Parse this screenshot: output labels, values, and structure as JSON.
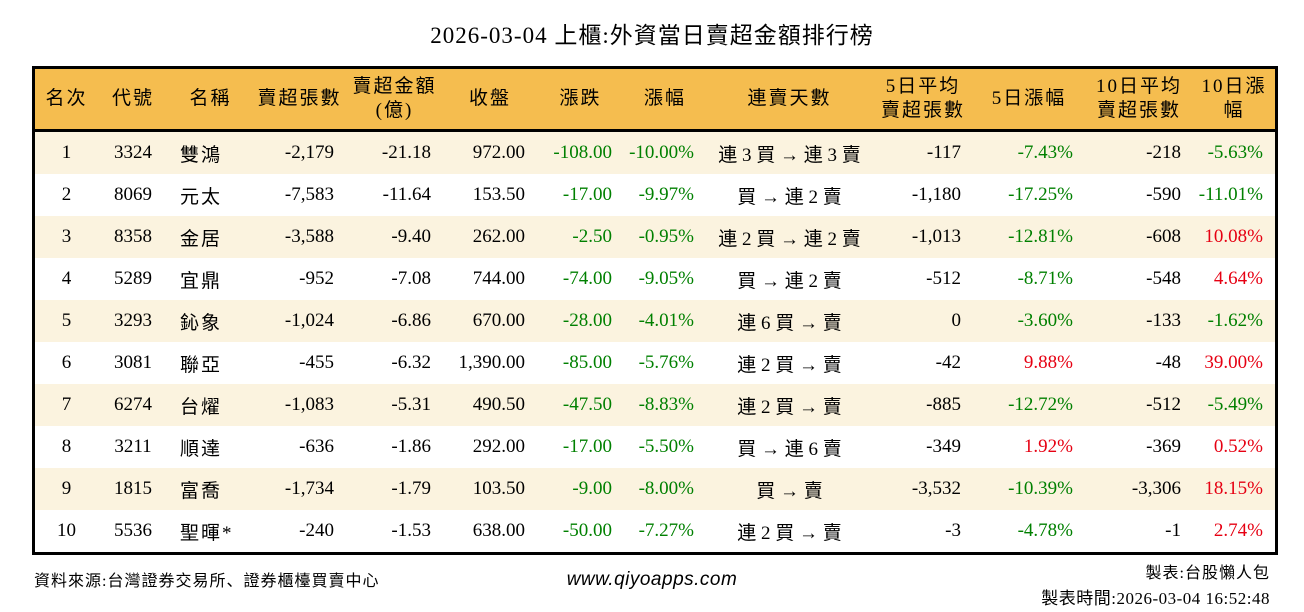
{
  "chart_data": {
    "type": "table",
    "title": "2026-03-04 上櫃:外資當日賣超金額排行榜",
    "columns": [
      "名次",
      "代號",
      "名稱",
      "賣超張數",
      "賣超金額\n(億)",
      "收盤",
      "漲跌",
      "漲幅",
      "連賣天數",
      "5日平均\n賣超張數",
      "5日漲幅",
      "10日平均\n賣超張數",
      "10日漲幅"
    ],
    "rows": [
      {
        "cells": [
          "1",
          "3324",
          "雙鴻",
          "-2,179",
          "-21.18",
          "972.00",
          "-108.00",
          "-10.00%",
          "連 3 買 → 連 3 賣",
          "-117",
          "-7.43%",
          "-218",
          "-5.63%"
        ],
        "colors": [
          "k",
          "k",
          "k",
          "k",
          "k",
          "k",
          "g",
          "g",
          "k",
          "k",
          "g",
          "k",
          "g"
        ]
      },
      {
        "cells": [
          "2",
          "8069",
          "元太",
          "-7,583",
          "-11.64",
          "153.50",
          "-17.00",
          "-9.97%",
          "買 → 連 2 賣",
          "-1,180",
          "-17.25%",
          "-590",
          "-11.01%"
        ],
        "colors": [
          "k",
          "k",
          "k",
          "k",
          "k",
          "k",
          "g",
          "g",
          "k",
          "k",
          "g",
          "k",
          "g"
        ]
      },
      {
        "cells": [
          "3",
          "8358",
          "金居",
          "-3,588",
          "-9.40",
          "262.00",
          "-2.50",
          "-0.95%",
          "連 2 買 → 連 2 賣",
          "-1,013",
          "-12.81%",
          "-608",
          "10.08%"
        ],
        "colors": [
          "k",
          "k",
          "k",
          "k",
          "k",
          "k",
          "g",
          "g",
          "k",
          "k",
          "g",
          "k",
          "r"
        ]
      },
      {
        "cells": [
          "4",
          "5289",
          "宜鼎",
          "-952",
          "-7.08",
          "744.00",
          "-74.00",
          "-9.05%",
          "買 → 連 2 賣",
          "-512",
          "-8.71%",
          "-548",
          "4.64%"
        ],
        "colors": [
          "k",
          "k",
          "k",
          "k",
          "k",
          "k",
          "g",
          "g",
          "k",
          "k",
          "g",
          "k",
          "r"
        ]
      },
      {
        "cells": [
          "5",
          "3293",
          "鈊象",
          "-1,024",
          "-6.86",
          "670.00",
          "-28.00",
          "-4.01%",
          "連 6 買 → 賣",
          "0",
          "-3.60%",
          "-133",
          "-1.62%"
        ],
        "colors": [
          "k",
          "k",
          "k",
          "k",
          "k",
          "k",
          "g",
          "g",
          "k",
          "k",
          "g",
          "k",
          "g"
        ]
      },
      {
        "cells": [
          "6",
          "3081",
          "聯亞",
          "-455",
          "-6.32",
          "1,390.00",
          "-85.00",
          "-5.76%",
          "連 2 買 → 賣",
          "-42",
          "9.88%",
          "-48",
          "39.00%"
        ],
        "colors": [
          "k",
          "k",
          "k",
          "k",
          "k",
          "k",
          "g",
          "g",
          "k",
          "k",
          "r",
          "k",
          "r"
        ]
      },
      {
        "cells": [
          "7",
          "6274",
          "台燿",
          "-1,083",
          "-5.31",
          "490.50",
          "-47.50",
          "-8.83%",
          "連 2 買 → 賣",
          "-885",
          "-12.72%",
          "-512",
          "-5.49%"
        ],
        "colors": [
          "k",
          "k",
          "k",
          "k",
          "k",
          "k",
          "g",
          "g",
          "k",
          "k",
          "g",
          "k",
          "g"
        ]
      },
      {
        "cells": [
          "8",
          "3211",
          "順達",
          "-636",
          "-1.86",
          "292.00",
          "-17.00",
          "-5.50%",
          "買 → 連 6 賣",
          "-349",
          "1.92%",
          "-369",
          "0.52%"
        ],
        "colors": [
          "k",
          "k",
          "k",
          "k",
          "k",
          "k",
          "g",
          "g",
          "k",
          "k",
          "r",
          "k",
          "r"
        ]
      },
      {
        "cells": [
          "9",
          "1815",
          "富喬",
          "-1,734",
          "-1.79",
          "103.50",
          "-9.00",
          "-8.00%",
          "買 → 賣",
          "-3,532",
          "-10.39%",
          "-3,306",
          "18.15%"
        ],
        "colors": [
          "k",
          "k",
          "k",
          "k",
          "k",
          "k",
          "g",
          "g",
          "k",
          "k",
          "g",
          "k",
          "r"
        ]
      },
      {
        "cells": [
          "10",
          "5536",
          "聖暉*",
          "-240",
          "-1.53",
          "638.00",
          "-50.00",
          "-7.27%",
          "連 2 買 → 賣",
          "-3",
          "-4.78%",
          "-1",
          "2.74%"
        ],
        "colors": [
          "k",
          "k",
          "k",
          "k",
          "k",
          "k",
          "g",
          "g",
          "k",
          "k",
          "g",
          "k",
          "r"
        ]
      }
    ]
  },
  "palette": {
    "k": "#000000",
    "g": "#008000",
    "r": "#e60012",
    "header_bg": "#f5bd4f",
    "row_alt_bg": "#fbf3df",
    "border": "#000000"
  },
  "footer": {
    "source": "資料來源:台灣證券交易所、證券櫃檯買賣中心",
    "website": "www.qiyoapps.com",
    "maker": "製表:台股懶人包",
    "timestamp": "製表時間:2026-03-04 16:52:48"
  }
}
